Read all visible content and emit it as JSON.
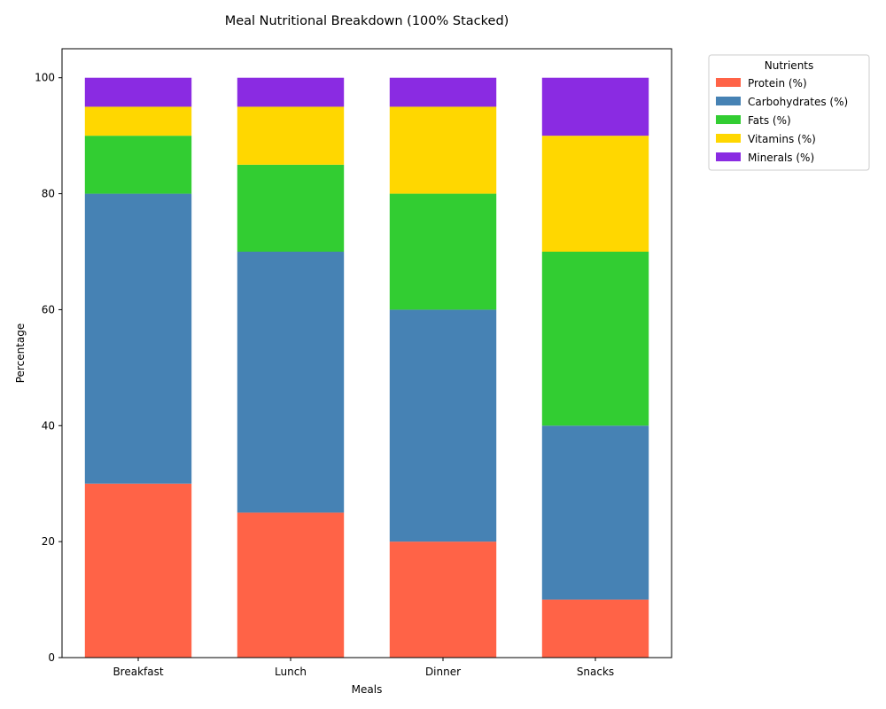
{
  "chart_data": {
    "type": "bar",
    "stacked": true,
    "title": "Meal Nutritional Breakdown (100% Stacked)",
    "xlabel": "Meals",
    "ylabel": "Percentage",
    "ylim": [
      0,
      105
    ],
    "yticks": [
      0,
      20,
      40,
      60,
      80,
      100
    ],
    "categories": [
      "Breakfast",
      "Lunch",
      "Dinner",
      "Snacks"
    ],
    "series": [
      {
        "name": "Protein (%)",
        "color": "#FF6347",
        "values": [
          30,
          25,
          20,
          10
        ]
      },
      {
        "name": "Carbohydrates (%)",
        "color": "#4682B4",
        "values": [
          50,
          45,
          40,
          30
        ]
      },
      {
        "name": "Fats (%)",
        "color": "#32CD32",
        "values": [
          10,
          15,
          20,
          30
        ]
      },
      {
        "name": "Vitamins (%)",
        "color": "#FFD700",
        "values": [
          5,
          10,
          15,
          20
        ]
      },
      {
        "name": "Minerals (%)",
        "color": "#8A2BE2",
        "values": [
          5,
          5,
          5,
          10
        ]
      }
    ],
    "legend": {
      "title": "Nutrients",
      "placement": "outside-top-right"
    },
    "grid": false
  }
}
